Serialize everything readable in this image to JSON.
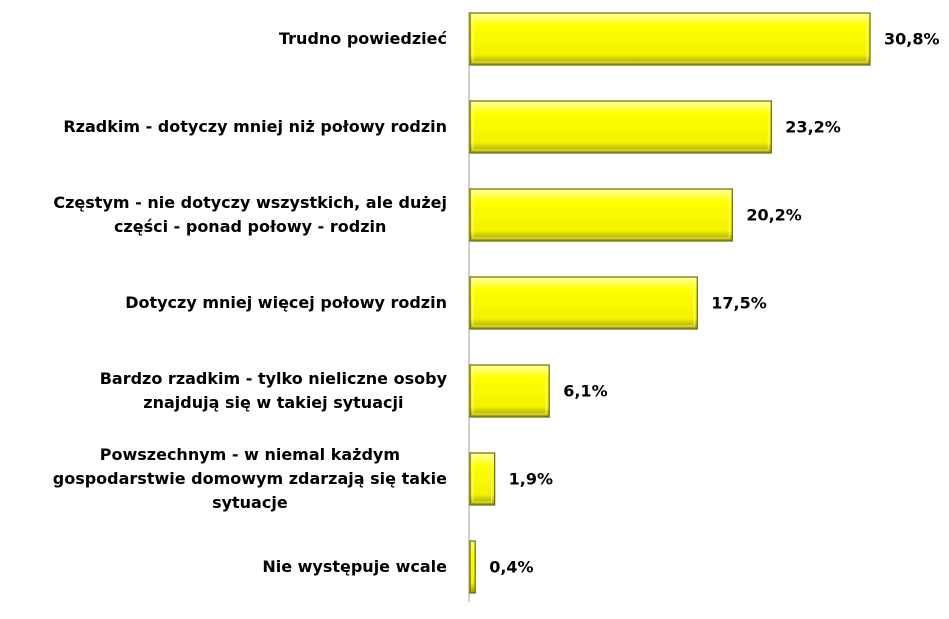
{
  "chart_data": {
    "type": "bar",
    "orientation": "horizontal",
    "color": "#ffff00",
    "categories": [
      "Trudno powiedzieć",
      "Rzadkim - dotyczy mniej niż połowy rodzin",
      "Częstym - nie dotyczy wszystkich, ale dużej\nczęści - ponad połowy - rodzin",
      "Dotyczy mniej więcej połowy rodzin",
      "Bardzo rzadkim - tylko nieliczne osoby\nznajdują się w takiej sytuacji",
      "Powszechnym - w niemal każdym\ngospodarstwie domowym zdarzają się takie\nsytuacje",
      "Nie występuje wcale"
    ],
    "values": [
      30.8,
      23.2,
      20.2,
      17.5,
      6.1,
      1.9,
      0.4
    ],
    "value_labels": [
      "30,8%",
      "23,2%",
      "20,2%",
      "17,5%",
      "6,1%",
      "1,9%",
      "0,4%"
    ]
  }
}
